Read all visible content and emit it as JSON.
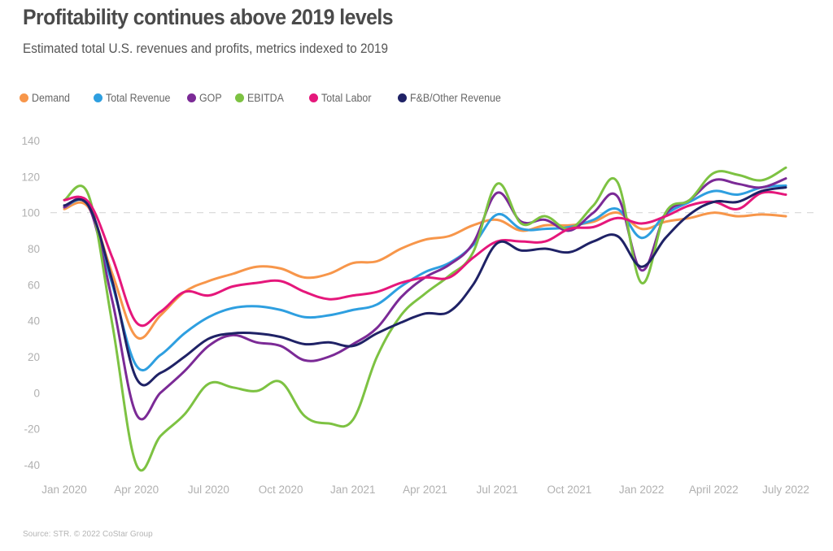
{
  "title": "Profitability continues above 2019 levels",
  "subtitle": "Estimated total U.S. revenues and profits, metrics indexed to 2019",
  "source": "Source: STR. © 2022 CoStar Group",
  "chart_data": {
    "type": "line",
    "title": "Profitability continues above 2019 levels",
    "subtitle": "Estimated total U.S. revenues and profits, metrics indexed to 2019",
    "xlabel": "",
    "ylabel": "",
    "ylim": [
      -40,
      140
    ],
    "yticks": [
      140,
      120,
      100,
      80,
      60,
      40,
      20,
      0,
      -20,
      -40
    ],
    "ytick_labels": [
      "140",
      "120",
      "100",
      "80",
      "60",
      "40",
      "20",
      "0",
      "-20",
      "-40"
    ],
    "reference_line": {
      "value": 100,
      "style": "dashed"
    },
    "grid": false,
    "legend_position": "top-left",
    "x": [
      "Jan 2020",
      "Feb 2020",
      "Mar 2020",
      "Apr 2020",
      "May 2020",
      "Jun 2020",
      "Jul 2020",
      "Aug 2020",
      "Sep 2020",
      "Oct 2020",
      "Nov 2020",
      "Dec 2020",
      "Jan 2021",
      "Feb 2021",
      "Mar 2021",
      "Apr 2021",
      "May 2021",
      "Jun 2021",
      "Jul 2021",
      "Aug 2021",
      "Sep 2021",
      "Oct 2021",
      "Nov 2021",
      "Dec 2021",
      "Jan 2022",
      "Feb 2022",
      "Mar 2022",
      "Apr 2022",
      "May 2022",
      "Jun 2022",
      "Jul 2022"
    ],
    "xticks": [
      {
        "index": 0,
        "label": "Jan 2020"
      },
      {
        "index": 3,
        "label": "Apr 2020"
      },
      {
        "index": 6,
        "label": "Jul 2020"
      },
      {
        "index": 9,
        "label": "Oct 2020"
      },
      {
        "index": 12,
        "label": "Jan 2021"
      },
      {
        "index": 15,
        "label": "Apr 2021"
      },
      {
        "index": 18,
        "label": "Jul 2021"
      },
      {
        "index": 21,
        "label": "Oct 2021"
      },
      {
        "index": 24,
        "label": "Jan 2022"
      },
      {
        "index": 27,
        "label": "April 2022"
      },
      {
        "index": 30,
        "label": "July 2022"
      }
    ],
    "series": [
      {
        "name": "Demand",
        "color": "#f7964a",
        "values": [
          102,
          103,
          66,
          31,
          43,
          56,
          62,
          66,
          70,
          69,
          64,
          66,
          72,
          73,
          80,
          85,
          87,
          93,
          96,
          90,
          93,
          93,
          95,
          100,
          91,
          95,
          97,
          100,
          98,
          99,
          98
        ]
      },
      {
        "name": "Total Revenue",
        "color": "#2e9fe0",
        "values": [
          103,
          104,
          60,
          15,
          21,
          33,
          42,
          47,
          48,
          46,
          42,
          43,
          46,
          49,
          59,
          67,
          72,
          82,
          99,
          91,
          91,
          92,
          96,
          102,
          86,
          99,
          106,
          112,
          110,
          114,
          115
        ]
      },
      {
        "name": "GOP",
        "color": "#7b2a96",
        "values": [
          103,
          104,
          51,
          -12,
          0,
          12,
          26,
          32,
          28,
          26,
          18,
          20,
          27,
          36,
          53,
          64,
          71,
          83,
          111,
          95,
          96,
          90,
          100,
          109,
          68,
          99,
          107,
          118,
          116,
          114,
          119
        ]
      },
      {
        "name": "EBITDA",
        "color": "#7dc242",
        "values": [
          107,
          110,
          38,
          -40,
          -24,
          -12,
          5,
          3,
          1,
          6,
          -13,
          -17,
          -15,
          20,
          43,
          55,
          65,
          78,
          116,
          94,
          98,
          91,
          104,
          117,
          61,
          100,
          107,
          122,
          121,
          118,
          125
        ]
      },
      {
        "name": "Total Labor",
        "color": "#e5177b",
        "values": [
          107,
          106,
          75,
          39,
          45,
          56,
          54,
          59,
          61,
          62,
          56,
          52,
          54,
          56,
          61,
          64,
          64,
          75,
          84,
          84,
          84,
          91,
          92,
          97,
          94,
          98,
          104,
          106,
          102,
          111,
          110
        ]
      },
      {
        "name": "F&B/Other Revenue",
        "color": "#1f2266",
        "values": [
          104,
          104,
          62,
          8,
          11,
          20,
          30,
          33,
          33,
          31,
          27,
          28,
          26,
          33,
          39,
          44,
          45,
          60,
          83,
          79,
          80,
          78,
          84,
          87,
          70,
          86,
          99,
          106,
          106,
          112,
          114
        ]
      }
    ]
  }
}
